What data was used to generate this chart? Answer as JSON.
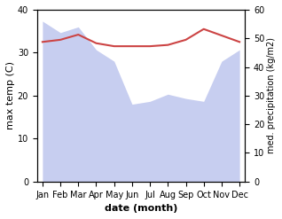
{
  "months": [
    "Jan",
    "Feb",
    "Mar",
    "Apr",
    "May",
    "Jun",
    "Jul",
    "Aug",
    "Sep",
    "Oct",
    "Nov",
    "Dec"
  ],
  "month_x": [
    0,
    1,
    2,
    3,
    4,
    5,
    6,
    7,
    8,
    9,
    10,
    11
  ],
  "max_temp": [
    32.5,
    33.0,
    34.2,
    32.2,
    31.5,
    31.5,
    31.5,
    31.8,
    33.0,
    35.5,
    34.0,
    32.5
  ],
  "precipitation": [
    56.0,
    52.0,
    54.0,
    46.0,
    42.0,
    27.0,
    28.0,
    30.5,
    29.0,
    28.0,
    42.0,
    46.0
  ],
  "temp_color": "#cc4444",
  "precip_color": "#aab4e8",
  "precip_alpha": 0.65,
  "ylim_temp": [
    0,
    40
  ],
  "ylim_precip": [
    0,
    60
  ],
  "ylabel_left": "max temp (C)",
  "ylabel_right": "med. precipitation (kg/m2)",
  "xlabel": "date (month)",
  "label_fontsize": 8,
  "tick_fontsize": 7,
  "background_color": "#ffffff"
}
